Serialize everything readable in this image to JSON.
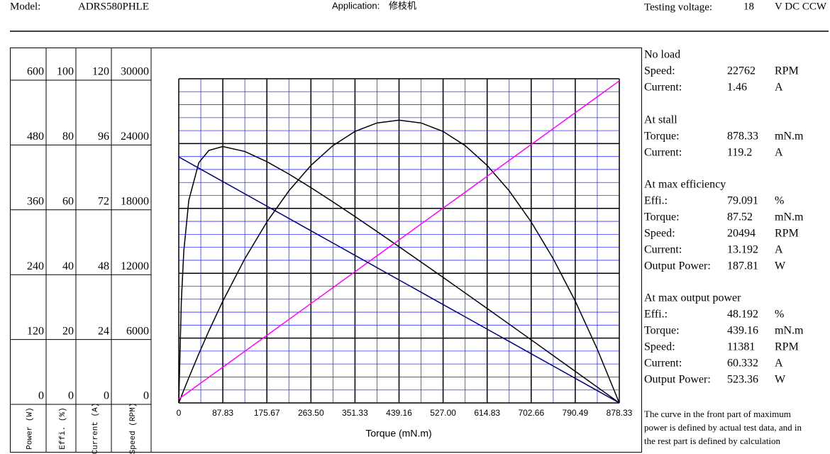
{
  "header": {
    "model_label": "Model:",
    "model": "ADRS580PHLE",
    "application_label": "Application:",
    "application": "修枝机",
    "voltage_label": "Testing voltage:",
    "voltage": "18",
    "voltage_unit": "V DC CCW"
  },
  "specs": [
    {
      "heading": "No load",
      "rows": [
        [
          "Speed:",
          "22762",
          "RPM"
        ],
        [
          "Current:",
          "1.46",
          "A"
        ]
      ]
    },
    {
      "heading": "At stall",
      "rows": [
        [
          "Torque:",
          "878.33",
          "mN.m"
        ],
        [
          "Current:",
          "119.2",
          "A"
        ]
      ]
    },
    {
      "heading": "At max efficiency",
      "rows": [
        [
          "Effi.:",
          "79.091",
          "%"
        ],
        [
          "Torque:",
          "87.52",
          "mN.m"
        ],
        [
          "Speed:",
          "20494",
          "RPM"
        ],
        [
          "Current:",
          "13.192",
          "A"
        ],
        [
          "Output Power:",
          "187.81",
          "W"
        ]
      ]
    },
    {
      "heading": "At max output power",
      "rows": [
        [
          "Effi.:",
          "48.192",
          "%"
        ],
        [
          "Torque:",
          "439.16",
          "mN.m"
        ],
        [
          "Speed:",
          "11381",
          "RPM"
        ],
        [
          "Current:",
          "60.332",
          "A"
        ],
        [
          "Output Power:",
          "523.36",
          "W"
        ]
      ]
    }
  ],
  "note": [
    "The curve in the front part of maximum",
    "power is defined by actual test data, and in",
    "the rest part is defined by calculation"
  ],
  "chart_data": {
    "type": "line",
    "xlabel": "Torque (mN.m)",
    "xlim": [
      0,
      878.33
    ],
    "xticks": [
      0,
      87.83,
      175.67,
      {
        "value": 263.5,
        "label": "263.50"
      },
      351.33,
      439.16,
      {
        "value": 527,
        "label": "527.00"
      },
      614.83,
      702.66,
      790.49,
      878.33
    ],
    "grid": true,
    "y_axes": [
      {
        "label": "Power (W)",
        "ylim": [
          0,
          600
        ],
        "yticks": [
          0,
          120,
          240,
          360,
          480,
          600
        ]
      },
      {
        "label": "Effi. (%)",
        "ylim": [
          0,
          100
        ],
        "yticks": [
          0,
          20,
          40,
          60,
          80,
          100
        ]
      },
      {
        "label": "Current (A)",
        "ylim": [
          0,
          120
        ],
        "yticks": [
          0,
          24,
          48,
          72,
          96,
          120
        ]
      },
      {
        "label": "Speed (RPM)",
        "ylim": [
          0,
          30000
        ],
        "yticks": [
          0,
          6000,
          12000,
          18000,
          24000,
          30000
        ]
      }
    ],
    "x": [
      0,
      5,
      10,
      20,
      40,
      60,
      87.83,
      131.75,
      175.67,
      219.58,
      263.5,
      307.42,
      351.33,
      395.25,
      439.16,
      483.08,
      527,
      570.91,
      614.83,
      658.75,
      702.66,
      746.58,
      790.49,
      834.41,
      878.33
    ],
    "series": [
      {
        "axis": 0,
        "color": "#000000",
        "values": [
          0,
          11.85,
          23.57,
          46.59,
          91.0,
          133.25,
          188.42,
          266.93,
          334.98,
          392.55,
          439.66,
          476.3,
          502.46,
          518.17,
          523.36,
          518.17,
          502.47,
          476.3,
          439.66,
          392.55,
          334.98,
          266.93,
          188.42,
          99.45,
          0
        ]
      },
      {
        "axis": 1,
        "color": "#000000",
        "values": [
          0,
          30.91,
          46.76,
          62.5,
          74.11,
          77.9,
          79.1,
          77.56,
          74.42,
          70.59,
          66.41,
          62.01,
          57.49,
          52.88,
          48.19,
          43.47,
          38.72,
          33.93,
          29.12,
          24.3,
          19.46,
          14.6,
          9.74,
          4.88,
          0
        ]
      },
      {
        "axis": 2,
        "color": "#ff00ff",
        "values": [
          1.46,
          2.13,
          2.8,
          4.14,
          6.82,
          9.5,
          13.23,
          19.12,
          25.01,
          30.9,
          36.78,
          42.67,
          48.56,
          54.44,
          60.33,
          66.22,
          72.1,
          77.99,
          83.88,
          89.77,
          95.65,
          101.54,
          107.43,
          113.31,
          119.2
        ]
      },
      {
        "axis": 3,
        "color": "#000080",
        "values": [
          22762,
          22632,
          22503,
          22244,
          21725,
          21207,
          20486,
          19348,
          18210,
          17072,
          15933,
          14795,
          13657,
          12519,
          11381,
          10243,
          9105,
          7967,
          6829,
          5691,
          4552,
          3414,
          2276,
          1138,
          0
        ]
      }
    ]
  }
}
